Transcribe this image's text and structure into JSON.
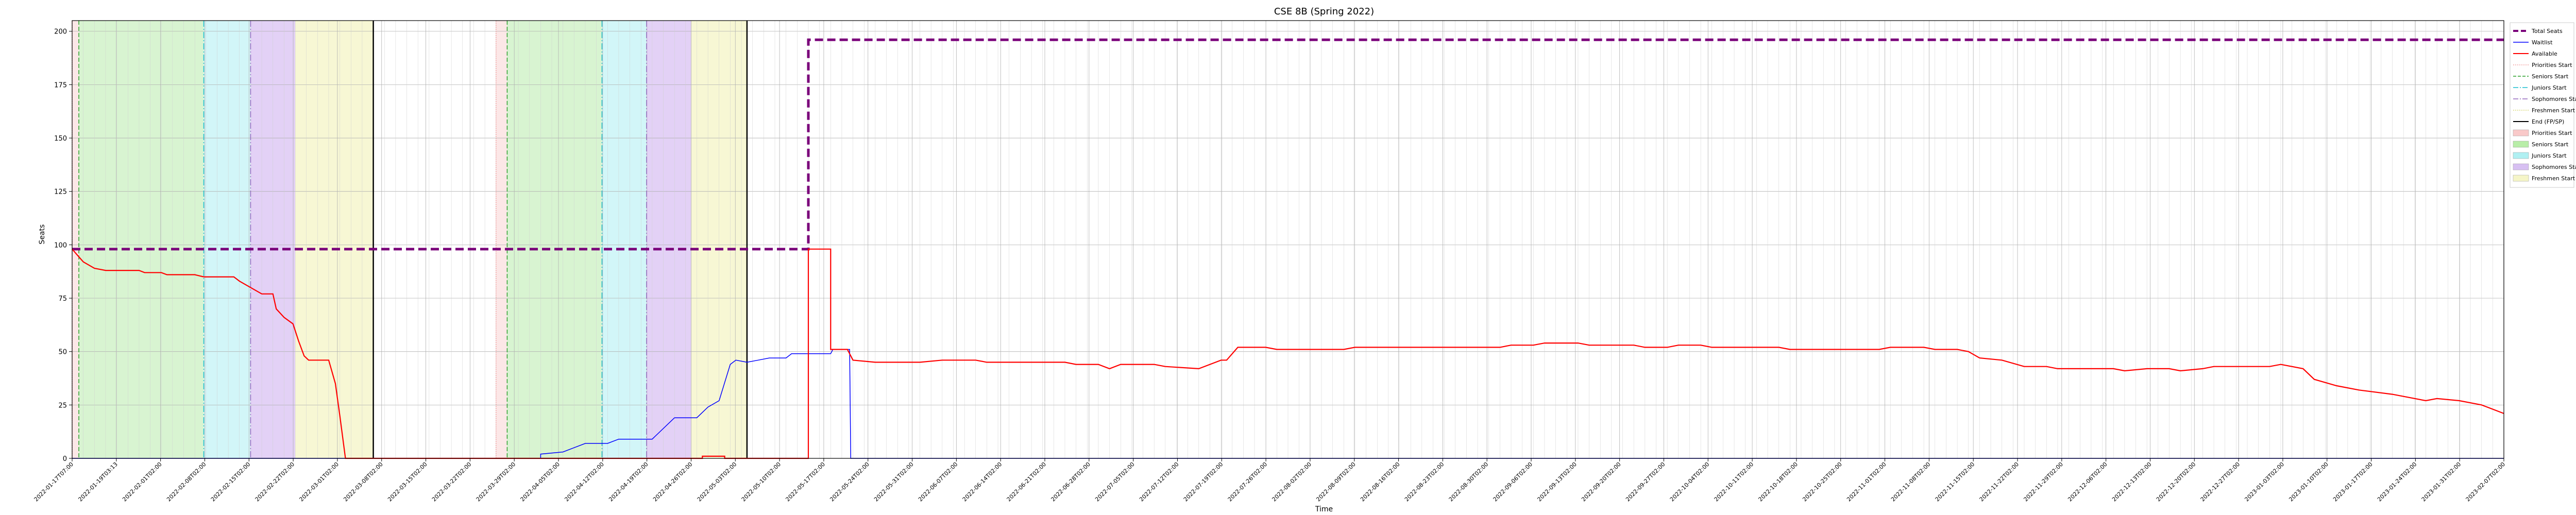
{
  "chart_data": {
    "type": "line",
    "title": "CSE 8B (Spring 2022)",
    "xlabel": "Time",
    "ylabel": "Seats",
    "ylim": [
      0,
      205
    ],
    "yticks": [
      0,
      25,
      50,
      75,
      100,
      125,
      150,
      175,
      200
    ],
    "grid": true,
    "legend_placement": "outside-right",
    "x_index_range": [
      0,
      218
    ],
    "x_tick_labels": [
      "2022-01-17T07:00",
      "2022-01-19T03:13",
      "2022-02-01T02:00",
      "2022-02-08T02:00",
      "2022-02-15T02:00",
      "2022-02-22T02:00",
      "2022-03-01T02:00",
      "2022-03-08T02:00",
      "2022-03-15T02:00",
      "2022-03-22T02:00",
      "2022-03-29T02:00",
      "2022-04-05T02:00",
      "2022-04-12T02:00",
      "2022-04-19T02:00",
      "2022-04-26T02:00",
      "2022-05-03T02:00",
      "2022-05-10T02:00",
      "2022-05-17T02:00",
      "2022-05-24T02:00",
      "2022-05-31T02:00",
      "2022-06-07T02:00",
      "2022-06-14T02:00",
      "2022-06-21T02:00",
      "2022-06-28T02:00",
      "2022-07-05T02:00",
      "2022-07-12T02:00",
      "2022-07-19T02:00",
      "2022-07-26T02:00",
      "2022-08-02T02:00",
      "2022-08-09T02:00",
      "2022-08-16T02:00",
      "2022-08-23T02:00",
      "2022-08-30T02:00",
      "2022-09-06T02:00",
      "2022-09-13T02:00",
      "2022-09-20T02:00",
      "2022-09-27T02:00",
      "2022-10-04T02:00",
      "2022-10-11T02:00",
      "2022-10-18T02:00",
      "2022-10-25T02:00",
      "2022-11-01T02:00",
      "2022-11-08T02:00",
      "2022-11-15T02:00",
      "2022-11-22T02:00",
      "2022-11-29T02:00",
      "2022-12-06T02:00",
      "2022-12-13T02:00",
      "2022-12-20T02:00",
      "2022-12-27T02:00",
      "2023-01-03T02:00",
      "2023-01-10T02:00",
      "2023-01-17T02:00",
      "2023-01-24T02:00",
      "2023-01-31T02:00",
      "2023-02-07T02:00"
    ],
    "shaded_regions": [
      {
        "kind": "Priorities Start",
        "color": "#f9c9c9",
        "opacity": 0.45,
        "x0": 0.0,
        "x1": 0.6
      },
      {
        "kind": "Seniors Start",
        "color": "#90e07a",
        "opacity": 0.35,
        "x0": 0.6,
        "x1": 11.8
      },
      {
        "kind": "Juniors Start",
        "color": "#7fe6ea",
        "opacity": 0.35,
        "x0": 11.8,
        "x1": 16.0
      },
      {
        "kind": "Sophomores Start",
        "color": "#b88ce8",
        "opacity": 0.4,
        "x0": 16.0,
        "x1": 20.0
      },
      {
        "kind": "Freshmen Start",
        "color": "#eeeea0",
        "opacity": 0.45,
        "x0": 20.0,
        "x1": 27.0
      },
      {
        "kind": "Priorities Start",
        "color": "#f9c9c9",
        "opacity": 0.45,
        "x0": 38.0,
        "x1": 39.0
      },
      {
        "kind": "Seniors Start",
        "color": "#90e07a",
        "opacity": 0.35,
        "x0": 39.0,
        "x1": 47.5
      },
      {
        "kind": "Juniors Start",
        "color": "#7fe6ea",
        "opacity": 0.35,
        "x0": 47.5,
        "x1": 51.5
      },
      {
        "kind": "Sophomores Start",
        "color": "#b88ce8",
        "opacity": 0.4,
        "x0": 51.5,
        "x1": 55.5
      },
      {
        "kind": "Freshmen Start",
        "color": "#eeeea0",
        "opacity": 0.45,
        "x0": 55.5,
        "x1": 60.5
      }
    ],
    "vertical_lines": [
      {
        "kind": "Priorities Start",
        "x": 0.0,
        "color": "#f4a3a3",
        "dash": "2,2"
      },
      {
        "kind": "Seniors Start",
        "x": 0.6,
        "color": "#2ca02c",
        "dash": "8,4"
      },
      {
        "kind": "Juniors Start",
        "x": 11.8,
        "color": "#17becf",
        "dash": "12,4,2,4"
      },
      {
        "kind": "Sophomores Start",
        "x": 16.0,
        "color": "#9467bd",
        "dash": "12,4,2,4"
      },
      {
        "kind": "End (FP/SP)",
        "x": 27.0,
        "color": "#000000",
        "dash": ""
      },
      {
        "kind": "Priorities Start",
        "x": 38.0,
        "color": "#f4a3a3",
        "dash": "2,2"
      },
      {
        "kind": "Seniors Start",
        "x": 39.0,
        "color": "#2ca02c",
        "dash": "8,4"
      },
      {
        "kind": "Juniors Start",
        "x": 47.5,
        "color": "#17becf",
        "dash": "12,4,2,4"
      },
      {
        "kind": "Sophomores Start",
        "x": 51.5,
        "color": "#9467bd",
        "dash": "12,4,2,4"
      },
      {
        "kind": "End (FP/SP)",
        "x": 60.5,
        "color": "#000000",
        "dash": ""
      }
    ],
    "series": [
      {
        "name": "Total Seats",
        "color": "#7a007a",
        "style": "dashed-thick",
        "points": [
          [
            0,
            98
          ],
          [
            66,
            98
          ],
          [
            66,
            196
          ],
          [
            218,
            196
          ]
        ]
      },
      {
        "name": "Waitlist",
        "color": "#0000ff",
        "style": "solid-thin",
        "points": [
          [
            0,
            0
          ],
          [
            42,
            0
          ],
          [
            42,
            2
          ],
          [
            44,
            3
          ],
          [
            45,
            5
          ],
          [
            46,
            7
          ],
          [
            48,
            7
          ],
          [
            49,
            9
          ],
          [
            52,
            9
          ],
          [
            53,
            14
          ],
          [
            54,
            19
          ],
          [
            56,
            19
          ],
          [
            57,
            24
          ],
          [
            58,
            27
          ],
          [
            59,
            44
          ],
          [
            59.5,
            46
          ],
          [
            60.5,
            45
          ],
          [
            61.5,
            46
          ],
          [
            62.5,
            47
          ],
          [
            64,
            47
          ],
          [
            64.5,
            49
          ],
          [
            68,
            49
          ],
          [
            68.2,
            51
          ],
          [
            69.7,
            51
          ],
          [
            69.8,
            0
          ],
          [
            218,
            0
          ]
        ]
      },
      {
        "name": "Available",
        "color": "#ff0000",
        "style": "solid",
        "points": [
          [
            0,
            98
          ],
          [
            0.5,
            95
          ],
          [
            1,
            92
          ],
          [
            2,
            89
          ],
          [
            3,
            88
          ],
          [
            6,
            88
          ],
          [
            6.5,
            87
          ],
          [
            8,
            87
          ],
          [
            8.5,
            86
          ],
          [
            11,
            86
          ],
          [
            11.8,
            85
          ],
          [
            14.5,
            85
          ],
          [
            15,
            83
          ],
          [
            16,
            80
          ],
          [
            17,
            77
          ],
          [
            18,
            77
          ],
          [
            18.3,
            70
          ],
          [
            19,
            66
          ],
          [
            19.8,
            63
          ],
          [
            20.3,
            55
          ],
          [
            20.8,
            48
          ],
          [
            21.2,
            46
          ],
          [
            23,
            46
          ],
          [
            23.6,
            35
          ],
          [
            24,
            20
          ],
          [
            24.5,
            0
          ],
          [
            56.5,
            0
          ],
          [
            56.5,
            1
          ],
          [
            58.5,
            1
          ],
          [
            58.5,
            0
          ],
          [
            66,
            0
          ],
          [
            66,
            98
          ],
          [
            68,
            98
          ],
          [
            68,
            51
          ],
          [
            69.5,
            51
          ],
          [
            70,
            46
          ],
          [
            72,
            45
          ],
          [
            76,
            45
          ],
          [
            78,
            46
          ],
          [
            81,
            46
          ],
          [
            82,
            45
          ],
          [
            89,
            45
          ],
          [
            90,
            44
          ],
          [
            92,
            44
          ],
          [
            93,
            42
          ],
          [
            94,
            44
          ],
          [
            97,
            44
          ],
          [
            98,
            43
          ],
          [
            101,
            42
          ],
          [
            103,
            46
          ],
          [
            103.5,
            46
          ],
          [
            104.5,
            52
          ],
          [
            107,
            52
          ],
          [
            108,
            51
          ],
          [
            114,
            51
          ],
          [
            115,
            52
          ],
          [
            128,
            52
          ],
          [
            129,
            53
          ],
          [
            131,
            53
          ],
          [
            132,
            54
          ],
          [
            135,
            54
          ],
          [
            136,
            53
          ],
          [
            140,
            53
          ],
          [
            141,
            52
          ],
          [
            143,
            52
          ],
          [
            144,
            53
          ],
          [
            146,
            53
          ],
          [
            147,
            52
          ],
          [
            153,
            52
          ],
          [
            154,
            51
          ],
          [
            162,
            51
          ],
          [
            163,
            52
          ],
          [
            166,
            52
          ],
          [
            167,
            51
          ],
          [
            169,
            51
          ],
          [
            170,
            50
          ],
          [
            171,
            47
          ],
          [
            173,
            46
          ],
          [
            175,
            43
          ],
          [
            177,
            43
          ],
          [
            178,
            42
          ],
          [
            183,
            42
          ],
          [
            184,
            41
          ],
          [
            186,
            42
          ],
          [
            188,
            42
          ],
          [
            189,
            41
          ],
          [
            191,
            42
          ],
          [
            192,
            43
          ],
          [
            197,
            43
          ],
          [
            198,
            44
          ],
          [
            200,
            42
          ],
          [
            201,
            37
          ],
          [
            203,
            34
          ],
          [
            205,
            32
          ],
          [
            208,
            30
          ],
          [
            211,
            27
          ],
          [
            212,
            28
          ],
          [
            214,
            27
          ],
          [
            216,
            25
          ],
          [
            222,
            25
          ],
          [
            223,
            24
          ],
          [
            226,
            24
          ],
          [
            227,
            24
          ],
          [
            229,
            23
          ],
          [
            232,
            23
          ],
          [
            233,
            22
          ],
          [
            238,
            22
          ],
          [
            239,
            21
          ],
          [
            240,
            22
          ],
          [
            242,
            23
          ],
          [
            245,
            22
          ],
          [
            247,
            21
          ],
          [
            218,
            21
          ]
        ]
      }
    ],
    "legend": [
      {
        "label": "Total Seats",
        "kind": "line",
        "color": "#7a007a",
        "dash": "10,5",
        "width": 4
      },
      {
        "label": "Waitlist",
        "kind": "line",
        "color": "#0000ff",
        "dash": "",
        "width": 1.5
      },
      {
        "label": "Available",
        "kind": "line",
        "color": "#ff0000",
        "dash": "",
        "width": 2
      },
      {
        "label": "Priorities Start",
        "kind": "line",
        "color": "#f4a3a3",
        "dash": "2,2",
        "width": 1.5
      },
      {
        "label": "Seniors Start",
        "kind": "line",
        "color": "#2ca02c",
        "dash": "6,3",
        "width": 1.5
      },
      {
        "label": "Juniors Start",
        "kind": "line",
        "color": "#17becf",
        "dash": "10,3,2,3",
        "width": 1.5
      },
      {
        "label": "Sophomores Start",
        "kind": "line",
        "color": "#9467bd",
        "dash": "10,3,2,3",
        "width": 1.5
      },
      {
        "label": "Freshmen Start",
        "kind": "line",
        "color": "#d9d97a",
        "dash": "2,2",
        "width": 1.5
      },
      {
        "label": "End (FP/SP)",
        "kind": "line",
        "color": "#000000",
        "dash": "",
        "width": 2
      },
      {
        "label": "Priorities Start",
        "kind": "patch",
        "color": "#f9c9c9"
      },
      {
        "label": "Seniors Start",
        "kind": "patch",
        "color": "#b8eda8"
      },
      {
        "label": "Juniors Start",
        "kind": "patch",
        "color": "#b0f0f2"
      },
      {
        "label": "Sophomores Start",
        "kind": "patch",
        "color": "#d7c0f2"
      },
      {
        "label": "Freshmen Start",
        "kind": "patch",
        "color": "#f5f5c8"
      }
    ]
  }
}
